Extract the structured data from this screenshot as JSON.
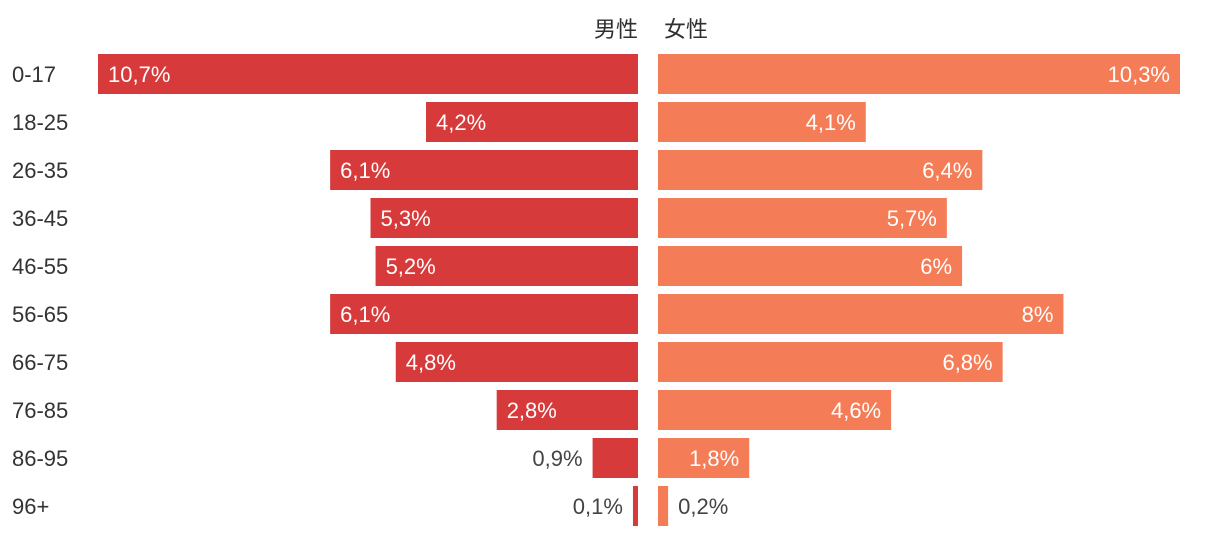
{
  "chart_data": {
    "type": "bar",
    "orientation": "horizontal",
    "layout": "butterfly",
    "categories": [
      "0-17",
      "18-25",
      "26-35",
      "36-45",
      "46-55",
      "56-65",
      "66-75",
      "76-85",
      "86-95",
      "96+"
    ],
    "series": [
      {
        "name": "男性",
        "color": "#d73a3a",
        "values": [
          10.7,
          4.2,
          6.1,
          5.3,
          5.2,
          6.1,
          4.8,
          2.8,
          0.9,
          0.1
        ],
        "labels": [
          "10,7%",
          "4,2%",
          "6,1%",
          "5,3%",
          "5,2%",
          "6,1%",
          "4,8%",
          "2,8%",
          "0,9%",
          "0,1%"
        ]
      },
      {
        "name": "女性",
        "color": "#f47d57",
        "values": [
          10.3,
          4.1,
          6.4,
          5.7,
          6.0,
          8.0,
          6.8,
          4.6,
          1.8,
          0.2
        ],
        "labels": [
          "10,3%",
          "4,1%",
          "6,4%",
          "5,7%",
          "6%",
          "8%",
          "6,8%",
          "4,6%",
          "1,8%",
          "0,2%"
        ]
      }
    ],
    "legend": "top-center",
    "grid": false,
    "title": "",
    "xlabel": "",
    "ylabel": ""
  }
}
